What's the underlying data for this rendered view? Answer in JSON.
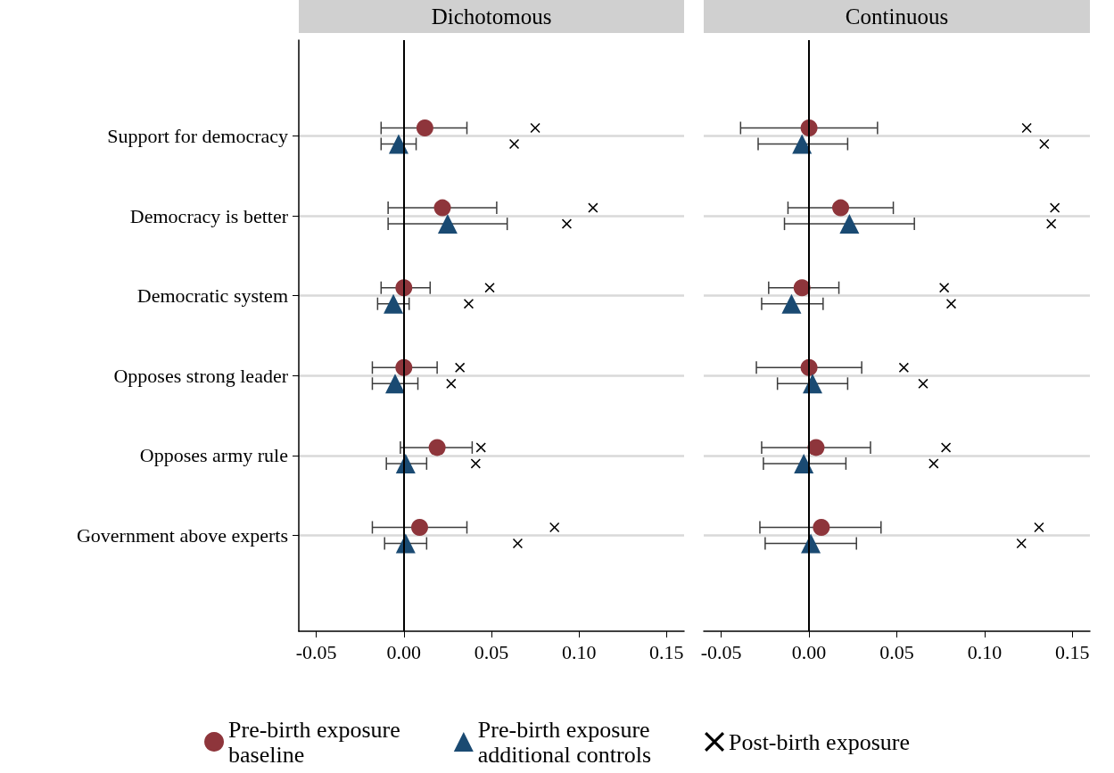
{
  "chart_data": [
    {
      "type": "scatter",
      "title": "Dichotomous",
      "orientation": "horizontal",
      "categories": [
        "Support for democracy",
        "Democracy is better",
        "Democratic system",
        "Opposes strong leader",
        "Opposes army rule",
        "Government above experts"
      ],
      "series": [
        {
          "name": "Pre-birth exposure\nbaseline",
          "color": "#8e353b",
          "marker": "circle",
          "values": [
            0.012,
            0.022,
            0.0,
            0.0,
            0.019,
            0.009
          ],
          "errors": [
            [
              -0.013,
              0.036
            ],
            [
              -0.009,
              0.053
            ],
            [
              -0.013,
              0.015
            ],
            [
              -0.018,
              0.019
            ],
            [
              -0.002,
              0.039
            ],
            [
              -0.018,
              0.036
            ]
          ]
        },
        {
          "name": "Pre-birth exposure\nadditional controls",
          "color": "#1a4a72",
          "marker": "triangle",
          "values": [
            -0.003,
            0.025,
            -0.006,
            -0.005,
            0.001,
            0.001
          ],
          "errors": [
            [
              -0.013,
              0.007
            ],
            [
              -0.009,
              0.059
            ],
            [
              -0.015,
              0.003
            ],
            [
              -0.018,
              0.008
            ],
            [
              -0.01,
              0.013
            ],
            [
              -0.011,
              0.013
            ]
          ]
        },
        {
          "name": "Post-birth exposure",
          "color": "#000000",
          "marker": "cross",
          "values": [
            0.075,
            0.108,
            0.049,
            0.032,
            0.044,
            0.086
          ]
        },
        {
          "color": "#000000",
          "marker": "cross",
          "values": [
            0.063,
            0.093,
            0.037,
            0.027,
            0.041,
            0.065
          ]
        }
      ],
      "xlim": [
        -0.06,
        0.16
      ],
      "xticks": [
        {
          "value": -0.05,
          "label": "-0.05"
        },
        {
          "value": 0,
          "label": "0.00"
        },
        {
          "value": 0.05,
          "label": "0.05"
        },
        {
          "value": 0.1,
          "label": "0.10"
        },
        {
          "value": 0.15,
          "label": "0.15"
        }
      ],
      "ref_lines": [
        {
          "axis": "x",
          "value": 0,
          "color": "#000000"
        }
      ],
      "grid": "y",
      "legend": "bottom"
    },
    {
      "type": "scatter",
      "title": "Continuous",
      "orientation": "horizontal",
      "categories": [
        null,
        null,
        null,
        null,
        null,
        null
      ],
      "series": [
        {
          "color": "#8e353b",
          "marker": "circle",
          "values": [
            0.0,
            0.018,
            -0.004,
            0.0,
            0.004,
            0.007
          ],
          "errors": [
            [
              -0.039,
              0.039
            ],
            [
              -0.012,
              0.048
            ],
            [
              -0.023,
              0.017
            ],
            [
              -0.03,
              0.03
            ],
            [
              -0.027,
              0.035
            ],
            [
              -0.028,
              0.041
            ]
          ]
        },
        {
          "color": "#1a4a72",
          "marker": "triangle",
          "values": [
            -0.004,
            0.023,
            -0.01,
            0.002,
            -0.003,
            0.001
          ],
          "errors": [
            [
              -0.029,
              0.022
            ],
            [
              -0.014,
              0.06
            ],
            [
              -0.027,
              0.008
            ],
            [
              -0.018,
              0.022
            ],
            [
              -0.026,
              0.021
            ],
            [
              -0.025,
              0.027
            ]
          ]
        },
        {
          "color": "#000000",
          "marker": "cross",
          "values": [
            0.124,
            0.14,
            0.077,
            0.054,
            0.078,
            0.131
          ]
        },
        {
          "color": "#000000",
          "marker": "cross",
          "values": [
            0.134,
            0.138,
            0.081,
            0.065,
            0.071,
            0.121
          ]
        }
      ],
      "xlim": [
        -0.06,
        0.16
      ],
      "xticks": [
        {
          "value": -0.05,
          "label": "-0.05"
        },
        {
          "value": 0,
          "label": "0.00"
        },
        {
          "value": 0.05,
          "label": "0.05"
        },
        {
          "value": 0.1,
          "label": "0.10"
        },
        {
          "value": 0.15,
          "label": "0.15"
        }
      ],
      "ref_lines": [
        {
          "axis": "x",
          "value": 0,
          "color": "#000000"
        }
      ],
      "grid": "y",
      "tick_labels": "x",
      "legend": false
    }
  ]
}
